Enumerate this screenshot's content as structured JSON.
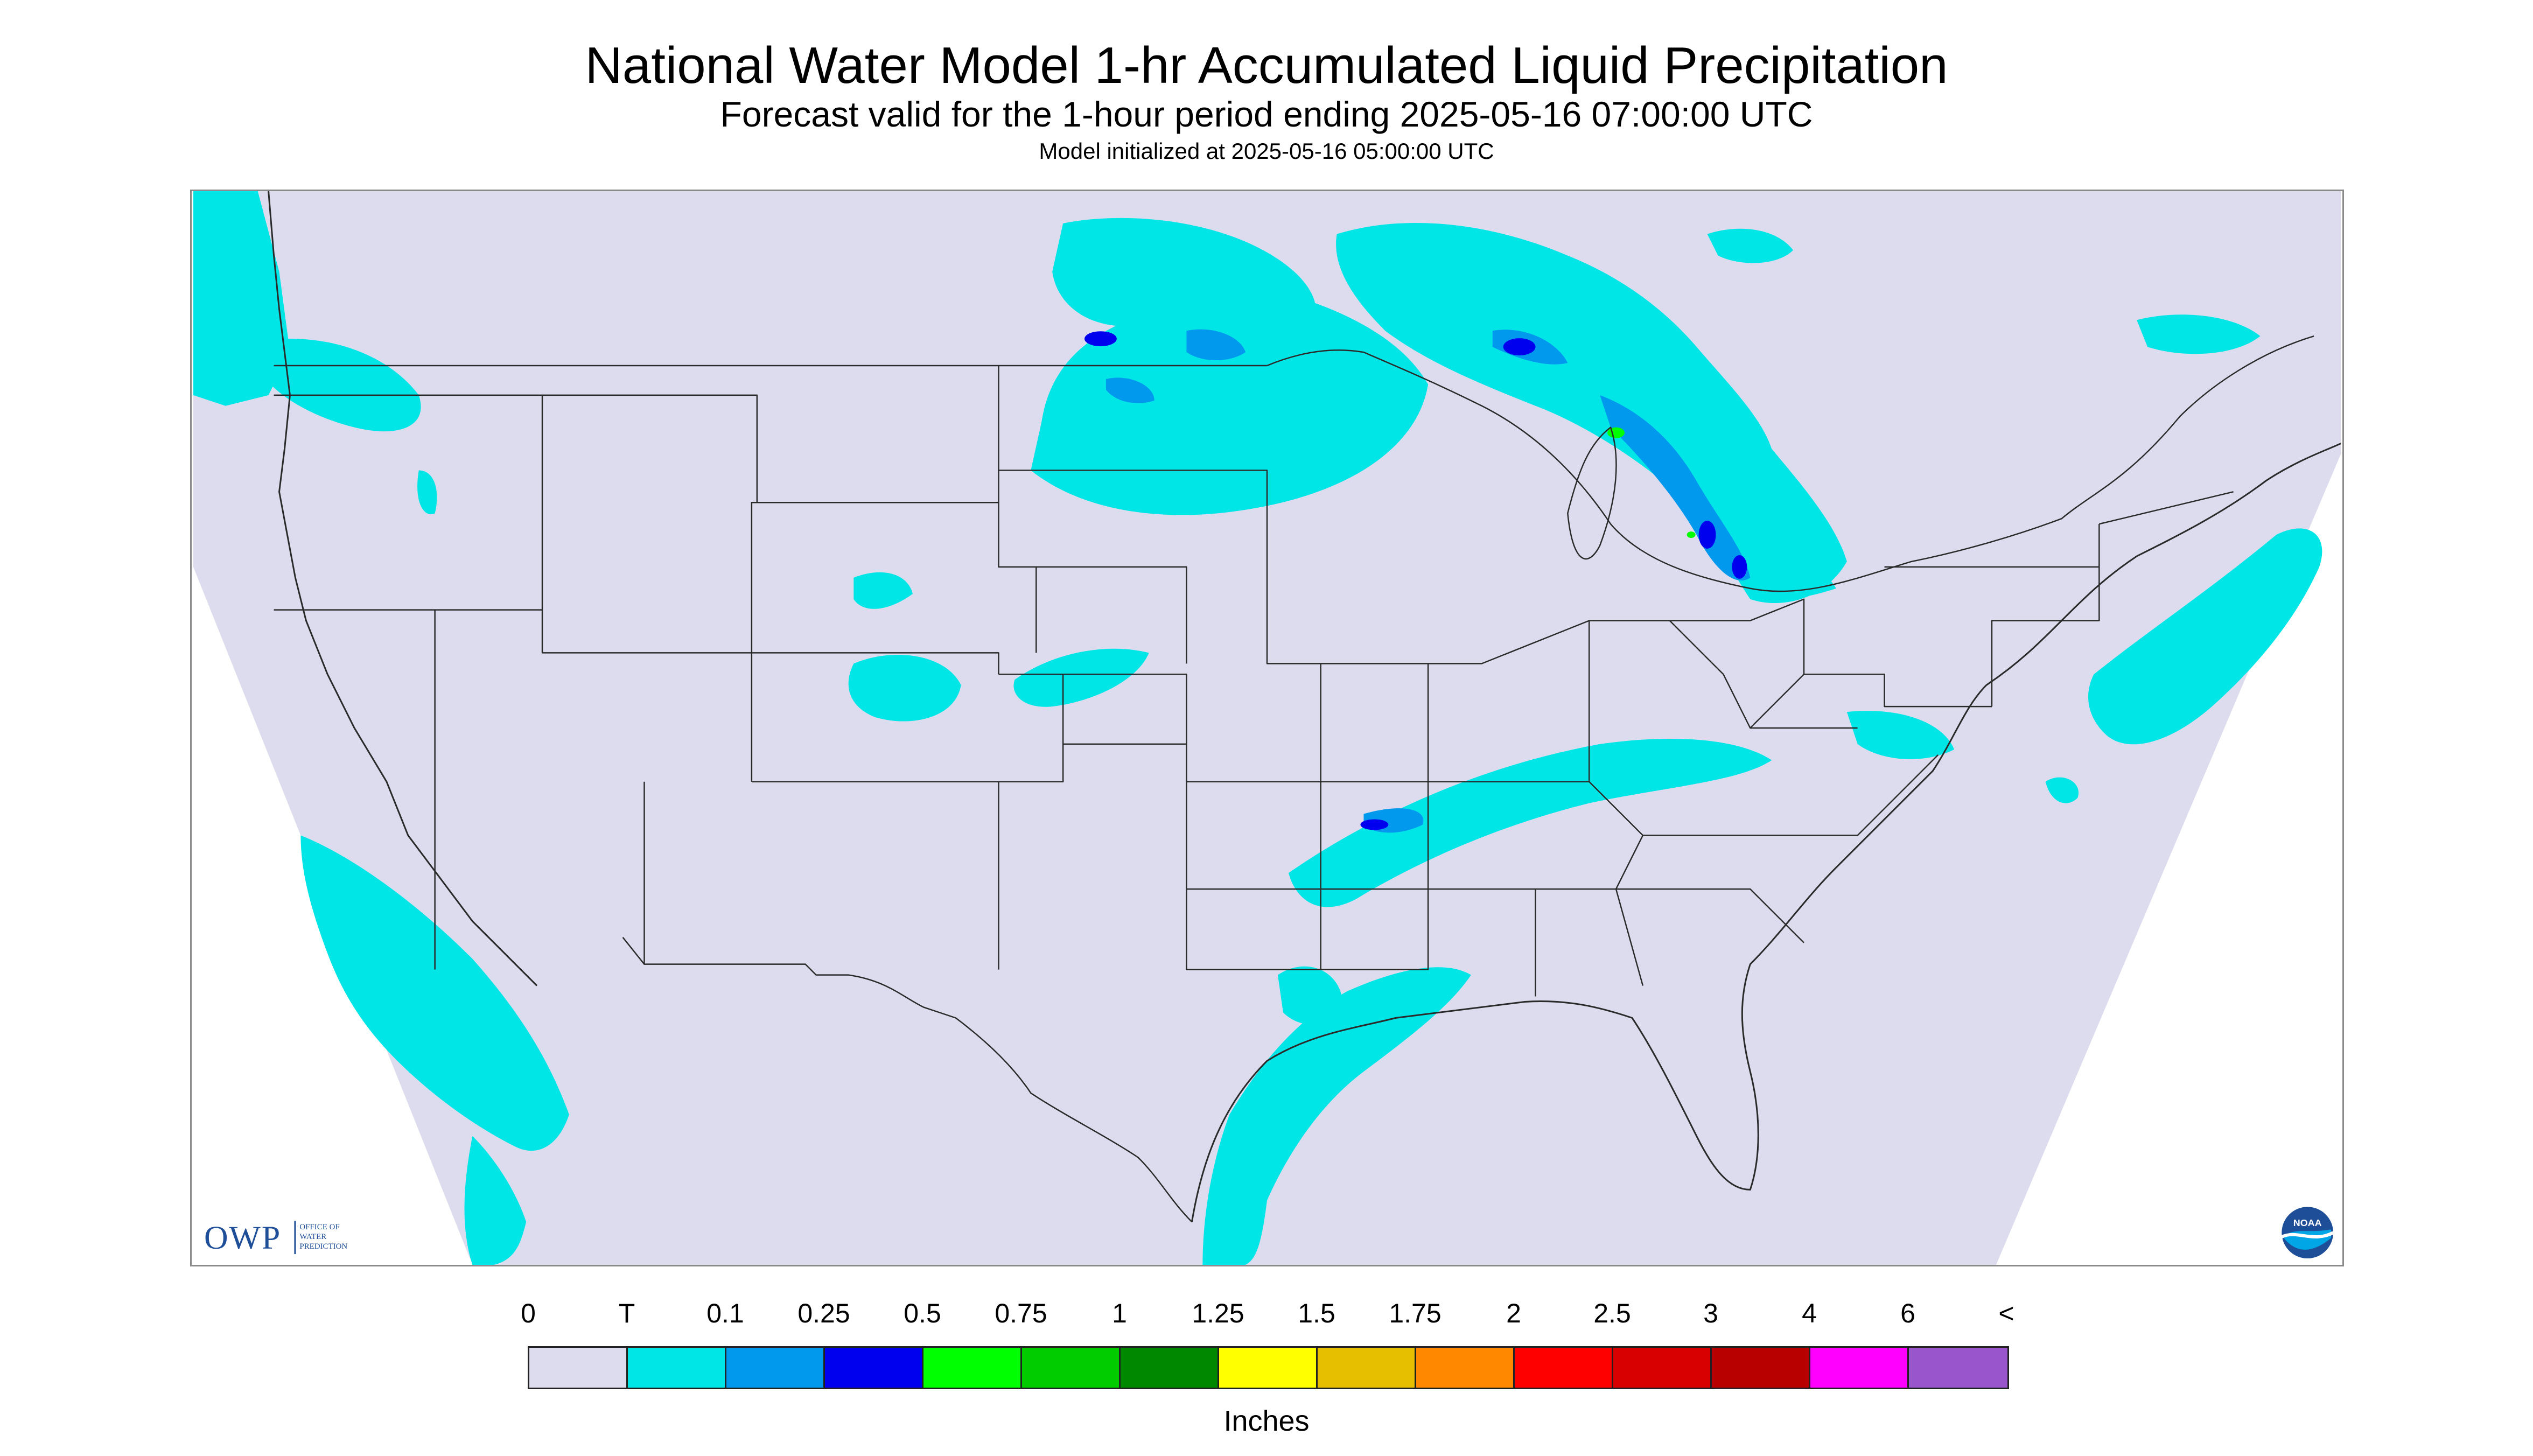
{
  "header": {
    "title": "National Water Model 1-hr Accumulated Liquid Precipitation",
    "subtitle": "Forecast valid for the 1-hour period ending 2025-05-16 07:00:00 UTC",
    "init": "Model initialized at 2025-05-16 05:00:00 UTC"
  },
  "legend": {
    "labels": [
      "0",
      "T",
      "0.1",
      "0.25",
      "0.5",
      "0.75",
      "1",
      "1.25",
      "1.5",
      "1.75",
      "2",
      "2.5",
      "3",
      "4",
      "6",
      "<"
    ],
    "colors": [
      "#dcdcee",
      "#00e6e6",
      "#0099ee",
      "#0000ee",
      "#00ff00",
      "#00cc00",
      "#008800",
      "#ffff00",
      "#e6c000",
      "#ff8800",
      "#ff0000",
      "#d80000",
      "#b80000",
      "#ff00ff",
      "#9955cc"
    ],
    "units": "Inches"
  },
  "logos": {
    "owp_mark": "OWP",
    "owp_text": "OFFICE OF WATER PREDICTION",
    "noaa_mark": "NOAA"
  },
  "colors": {
    "background": "#dcdcee",
    "trace": "#00e6e6",
    "light_blue": "#0099ee",
    "blue": "#0000ee",
    "green": "#00ff00",
    "boundary": "#2a2a2a"
  }
}
